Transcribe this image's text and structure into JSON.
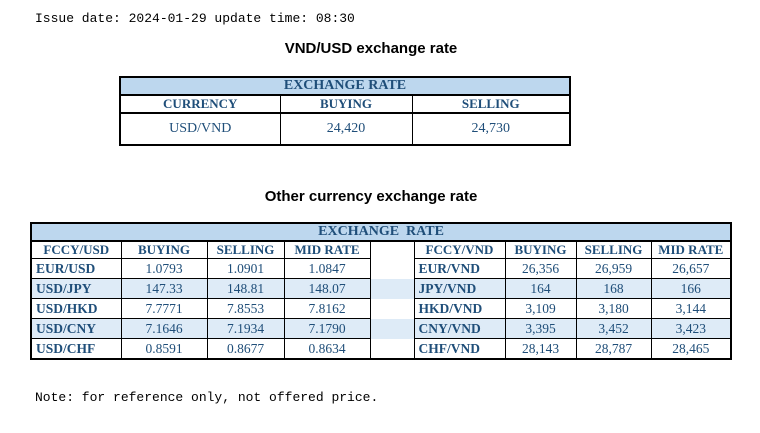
{
  "page": {
    "issue_line": "Issue date: 2024-01-29 update time: 08:30",
    "note_line": "Note: for reference only, not offered price."
  },
  "usd_table": {
    "title": "VND/USD exchange rate",
    "band": "EXCHANGE RATE",
    "headers": [
      "CURRENCY",
      "BUYING",
      "SELLING"
    ],
    "rows": [
      [
        "USD/VND",
        "24,420",
        "24,730"
      ]
    ]
  },
  "other_table": {
    "title": "Other currency exchange rate",
    "band": "EXCHANGE  RATE",
    "headers": [
      "FCCY/USD",
      "BUYING",
      "SELLING",
      "MID RATE",
      "",
      "FCCY/VND",
      "BUYING",
      "SELLING",
      "MID RATE"
    ],
    "rows": [
      [
        "EUR/USD",
        "1.0793",
        "1.0901",
        "1.0847",
        "",
        "EUR/VND",
        "26,356",
        "26,959",
        "26,657"
      ],
      [
        "USD/JPY",
        "147.33",
        "148.81",
        "148.07",
        "",
        "JPY/VND",
        "164",
        "168",
        "166"
      ],
      [
        "USD/HKD",
        "7.7771",
        "7.8553",
        "7.8162",
        "",
        "HKD/VND",
        "3,109",
        "3,180",
        "3,144"
      ],
      [
        "USD/CNY",
        "7.1646",
        "7.1934",
        "7.1790",
        "",
        "CNY/VND",
        "3,395",
        "3,452",
        "3,423"
      ],
      [
        "USD/CHF",
        "0.8591",
        "0.8677",
        "0.8634",
        "",
        "CHF/VND",
        "28,143",
        "28,787",
        "28,465"
      ]
    ]
  },
  "colors": {
    "band_bg": "#BDD7EE",
    "stripe_bg": "#DEEBF7",
    "table_text": "#1F4E79"
  }
}
